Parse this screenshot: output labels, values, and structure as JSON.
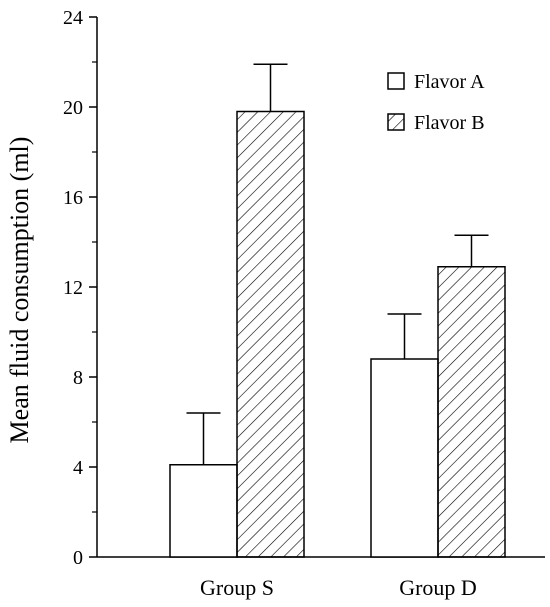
{
  "chart_data": {
    "type": "bar",
    "title": "",
    "xlabel": "",
    "ylabel": "Mean fluid consumption (ml)",
    "ylim": [
      0,
      24
    ],
    "yticks": [
      "0",
      "4",
      "8",
      "12",
      "16",
      "20",
      "24"
    ],
    "categories": [
      "Group S",
      "Group D"
    ],
    "series": [
      {
        "name": "Flavor A",
        "fill": "open",
        "values": [
          4.1,
          8.8
        ],
        "errors": [
          2.3,
          2.0
        ]
      },
      {
        "name": "Flavor B",
        "fill": "hatched",
        "values": [
          19.8,
          12.9
        ],
        "errors": [
          2.1,
          1.4
        ]
      }
    ],
    "legend_position": "top-right",
    "grid": false,
    "colors": {
      "stroke": "#000000",
      "background": "#ffffff"
    }
  }
}
